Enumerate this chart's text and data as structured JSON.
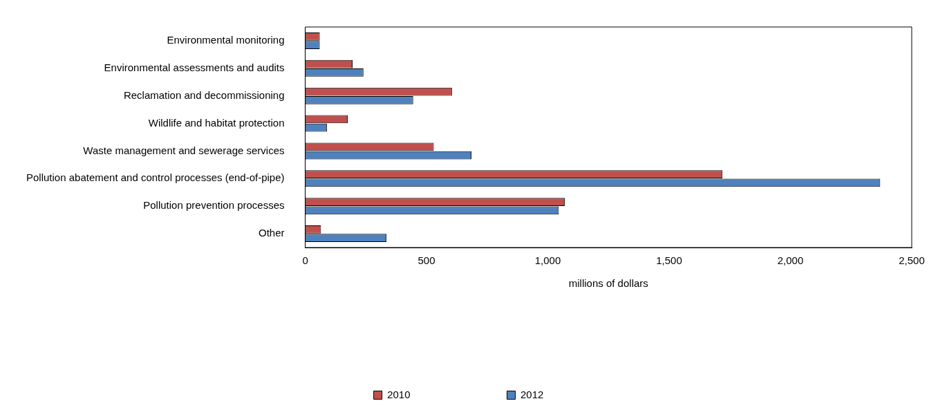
{
  "chart_data": {
    "type": "bar",
    "orientation": "horizontal",
    "xlabel": "millions of dollars",
    "categories": [
      "Environmental monitoring",
      "Environmental assessments and audits",
      "Reclamation and decommissioning",
      "Wildlife and habitat protection",
      "Waste management and sewerage services",
      "Pollution abatement and control processes (end-of-pipe)",
      "Pollution prevention processes",
      "Other"
    ],
    "series": [
      {
        "name": "2010",
        "color": "#c0504d",
        "values": [
          60,
          195,
          605,
          175,
          530,
          1720,
          1070,
          65
        ]
      },
      {
        "name": "2012",
        "color": "#4f81bd",
        "values": [
          60,
          240,
          445,
          90,
          685,
          2370,
          1045,
          335
        ]
      }
    ],
    "xlim": [
      0,
      2500
    ],
    "xticks": [
      {
        "value": 0,
        "label": "0"
      },
      {
        "value": 500,
        "label": "500"
      },
      {
        "value": 1000,
        "label": "1,000"
      },
      {
        "value": 1500,
        "label": "1,500"
      },
      {
        "value": 2000,
        "label": "2,000"
      },
      {
        "value": 2500,
        "label": "2,500"
      }
    ],
    "grid": false,
    "legend": "bottom"
  }
}
